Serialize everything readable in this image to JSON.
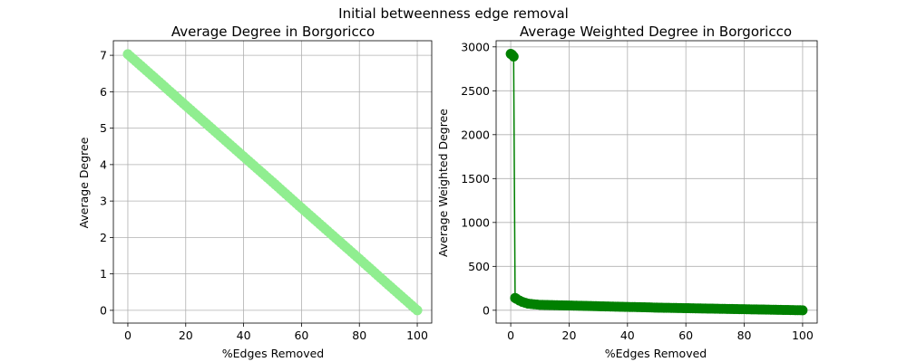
{
  "figure": {
    "suptitle": "Initial betweenness edge removal"
  },
  "chart_data": [
    {
      "type": "line",
      "title": "Average Degree in Borgoricco",
      "xlabel": "%Edges Removed",
      "ylabel": "Average Degree",
      "xlim": [
        -5,
        105
      ],
      "ylim": [
        -0.35,
        7.4
      ],
      "xticks": [
        0,
        20,
        40,
        60,
        80,
        100
      ],
      "yticks": [
        0,
        1,
        2,
        3,
        4,
        5,
        6,
        7
      ],
      "grid": true,
      "color": "#90ee90",
      "marker": "circle",
      "series": [
        {
          "x": [
            0,
            10,
            20,
            30,
            40,
            50,
            60,
            70,
            80,
            90,
            100
          ],
          "values": [
            7.03,
            6.33,
            5.62,
            4.92,
            4.22,
            3.52,
            2.81,
            2.11,
            1.41,
            0.7,
            0.0
          ]
        }
      ]
    },
    {
      "type": "line",
      "title": "Average Weighted Degree in Borgoricco",
      "xlabel": "%Edges Removed",
      "ylabel": "Average Weighted Degree",
      "xlim": [
        -5,
        105
      ],
      "ylim": [
        -146,
        3070
      ],
      "xticks": [
        0,
        20,
        40,
        60,
        80,
        100
      ],
      "yticks": [
        0,
        500,
        1000,
        1500,
        2000,
        2500,
        3000
      ],
      "grid": true,
      "color": "#008000",
      "marker": "circle",
      "series": [
        {
          "x": [
            0,
            0.5,
            1,
            1.5,
            2,
            3,
            4,
            5,
            6,
            8,
            10,
            15,
            20,
            25,
            30,
            35,
            40,
            45,
            50,
            55,
            60,
            65,
            70,
            75,
            80,
            85,
            90,
            95,
            100
          ],
          "values": [
            2920,
            2910,
            2890,
            140,
            130,
            110,
            95,
            85,
            75,
            68,
            62,
            58,
            54,
            50,
            46,
            42,
            38,
            35,
            30,
            27,
            24,
            21,
            18,
            15,
            12,
            9,
            6,
            3,
            0
          ]
        }
      ]
    }
  ]
}
